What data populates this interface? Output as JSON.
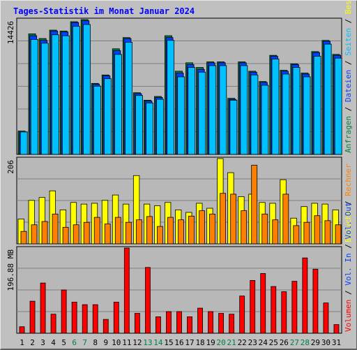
{
  "chart_data": {
    "type": "bar",
    "title": "Tages-Statistik im Monat Januar 2024",
    "categories": [
      "1",
      "2",
      "3",
      "4",
      "5",
      "6",
      "7",
      "8",
      "9",
      "10",
      "11",
      "12",
      "13",
      "14",
      "15",
      "16",
      "17",
      "18",
      "19",
      "20",
      "21",
      "22",
      "23",
      "24",
      "25",
      "26",
      "27",
      "28",
      "29",
      "30",
      "31"
    ],
    "weekend_days": [
      "6",
      "7",
      "13",
      "14",
      "20",
      "21",
      "27",
      "28"
    ],
    "panels": [
      {
        "name": "top",
        "ymax_label": "14426",
        "ymax": 14426,
        "right_labels": [
          {
            "text": "Anfragen",
            "color": "#008040"
          },
          {
            "text": " / ",
            "color": "#000000"
          },
          {
            "text": "Dateien",
            "color": "#0040ff"
          },
          {
            "text": " / ",
            "color": "#000000"
          },
          {
            "text": "Seiten",
            "color": "#00c0ff"
          },
          {
            "text": " / ",
            "color": "#000000"
          },
          {
            "text": "Besuche",
            "color": "#ffff00"
          }
        ],
        "series": [
          {
            "name": "Anfragen",
            "color": "#008040",
            "values": [
              2500,
              12900,
              12400,
              13300,
              13200,
              14200,
              14426,
              7600,
              8500,
              11300,
              12500,
              6600,
              5800,
              6200,
              12700,
              8900,
              9800,
              9300,
              9900,
              9900,
              6000,
              9900,
              8900,
              7800,
              10600,
              9000,
              9700,
              8700,
              11000,
              12200,
              10700
            ]
          },
          {
            "name": "Dateien",
            "color": "#0040ff",
            "values": [
              2400,
              12700,
              12200,
              13200,
              13100,
              14100,
              14300,
              7500,
              8400,
              11100,
              12400,
              6500,
              5700,
              6100,
              12500,
              8700,
              9600,
              9100,
              9800,
              9800,
              5900,
              9800,
              8800,
              7700,
              10500,
              8900,
              9600,
              8600,
              10900,
              12100,
              10600
            ]
          },
          {
            "name": "Seiten",
            "color": "#00c0ff",
            "values": [
              2400,
              12300,
              11900,
              12800,
              12700,
              13700,
              13900,
              7300,
              8100,
              10700,
              12000,
              6300,
              5500,
              5900,
              12200,
              8300,
              9300,
              8800,
              9500,
              9500,
              5800,
              9500,
              8500,
              7400,
              10200,
              8600,
              9300,
              8300,
              10500,
              11800,
              10300
            ]
          }
        ]
      },
      {
        "name": "middle",
        "ymax_label": "206",
        "ymax": 206,
        "right_labels": [
          {
            "text": "Besuche",
            "color": "#ffff00"
          },
          {
            "text": " / ",
            "color": "#000000"
          },
          {
            "text": "Rechner",
            "color": "#ff8000"
          }
        ],
        "series": [
          {
            "name": "Besuche",
            "color": "#ffff00",
            "values": [
              60,
              105,
              112,
              128,
              82,
              100,
              96,
              98,
              105,
              118,
              96,
              165,
              96,
              92,
              100,
              82,
              76,
              98,
              86,
              206,
              172,
              114,
              120,
              100,
              98,
              155,
              62,
              90,
              98,
              96,
              82
            ]
          },
          {
            "name": "Rechner",
            "color": "#ff8000",
            "values": [
              30,
              46,
              54,
              72,
              40,
              46,
              52,
              64,
              48,
              64,
              52,
              58,
              66,
              42,
              64,
              58,
              67,
              80,
              72,
              122,
              120,
              80,
              190,
              72,
              58,
              120,
              44,
              52,
              68,
              56,
              46
            ]
          }
        ]
      },
      {
        "name": "bottom",
        "ymax_label": "196.88 MB",
        "ymax": 196.88,
        "right_labels": [
          {
            "text": "Volumen",
            "color": "#ff0000"
          },
          {
            "text": " / ",
            "color": "#000000"
          },
          {
            "text": "Vol. In",
            "color": "#0040ff"
          },
          {
            "text": " / ",
            "color": "#000000"
          },
          {
            "text": "Vol. Out",
            "color": "#0040ff"
          }
        ],
        "series": [
          {
            "name": "Volumen",
            "color": "#ff0000",
            "values": [
              15,
              74,
              116,
              44,
              100,
              72,
              66,
              66,
              32,
              72,
              196.88,
              46,
              152,
              38,
              50,
              50,
              38,
              58,
              50,
              46,
              44,
              86,
              122,
              138,
              108,
              96,
              120,
              174,
              148,
              70,
              20
            ]
          }
        ]
      }
    ]
  }
}
